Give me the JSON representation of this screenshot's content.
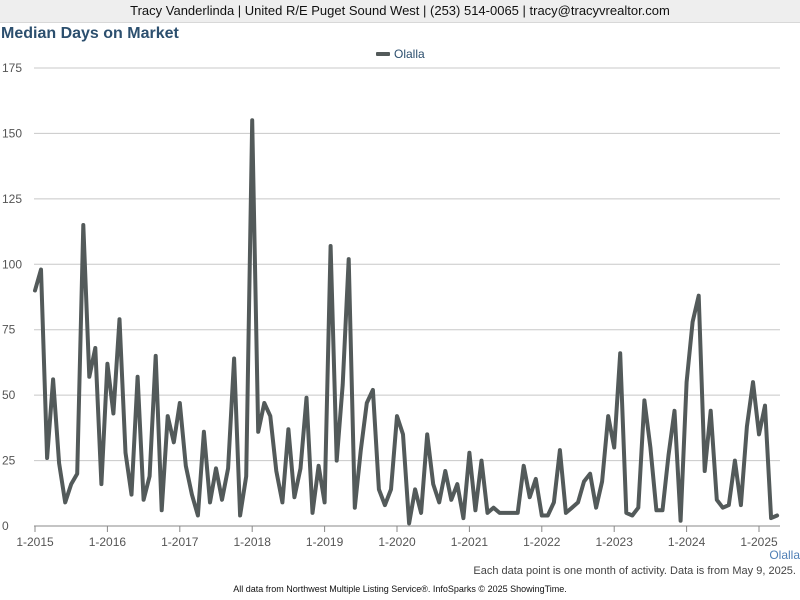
{
  "header": {
    "contact": "Tracy Vanderlinda | United R/E Puget Sound West | (253) 514-0065 | tracy@tracyvrealtor.com"
  },
  "footer": {
    "note": "Each data point is one month of activity. Data is from May 9, 2025.",
    "source": "All data from Northwest Multiple Listing Service®. InfoSparks © 2025 ShowingTime."
  },
  "chart_data": {
    "type": "line",
    "title": "Median Days on Market",
    "xlabel": "",
    "ylabel": "",
    "ylim": [
      0,
      175
    ],
    "yticks": [
      0,
      25,
      50,
      75,
      100,
      125,
      150,
      175
    ],
    "xticks": [
      "1-2015",
      "1-2016",
      "1-2017",
      "1-2018",
      "1-2019",
      "1-2020",
      "1-2021",
      "1-2022",
      "1-2023",
      "1-2024",
      "1-2025"
    ],
    "grid": true,
    "legend": "top-center",
    "line_color": "#535a5a",
    "x_start": "2015-01",
    "x_end": "2025-04",
    "series": [
      {
        "name": "Olalla",
        "values": [
          90,
          98,
          26,
          56,
          24,
          9,
          16,
          20,
          115,
          57,
          68,
          16,
          62,
          43,
          79,
          28,
          12,
          57,
          10,
          19,
          65,
          6,
          42,
          32,
          47,
          23,
          12,
          4,
          36,
          9,
          22,
          10,
          22,
          64,
          4,
          19,
          155,
          36,
          47,
          42,
          21,
          9,
          37,
          11,
          22,
          49,
          5,
          23,
          9,
          107,
          25,
          54,
          102,
          7,
          29,
          47,
          52,
          14,
          8,
          14,
          42,
          35,
          1,
          14,
          5,
          35,
          16,
          9,
          21,
          10,
          16,
          3,
          28,
          6,
          25,
          5,
          7,
          5,
          5,
          5,
          5,
          23,
          11,
          18,
          4,
          4,
          9,
          29,
          5,
          7,
          9,
          17,
          20,
          7,
          17,
          42,
          30,
          66,
          5,
          4,
          7,
          48,
          30,
          6,
          6,
          27,
          44,
          2,
          55,
          78,
          88,
          21,
          44,
          10,
          7,
          8,
          25,
          8,
          38,
          55,
          35,
          46,
          3,
          4
        ]
      }
    ]
  }
}
